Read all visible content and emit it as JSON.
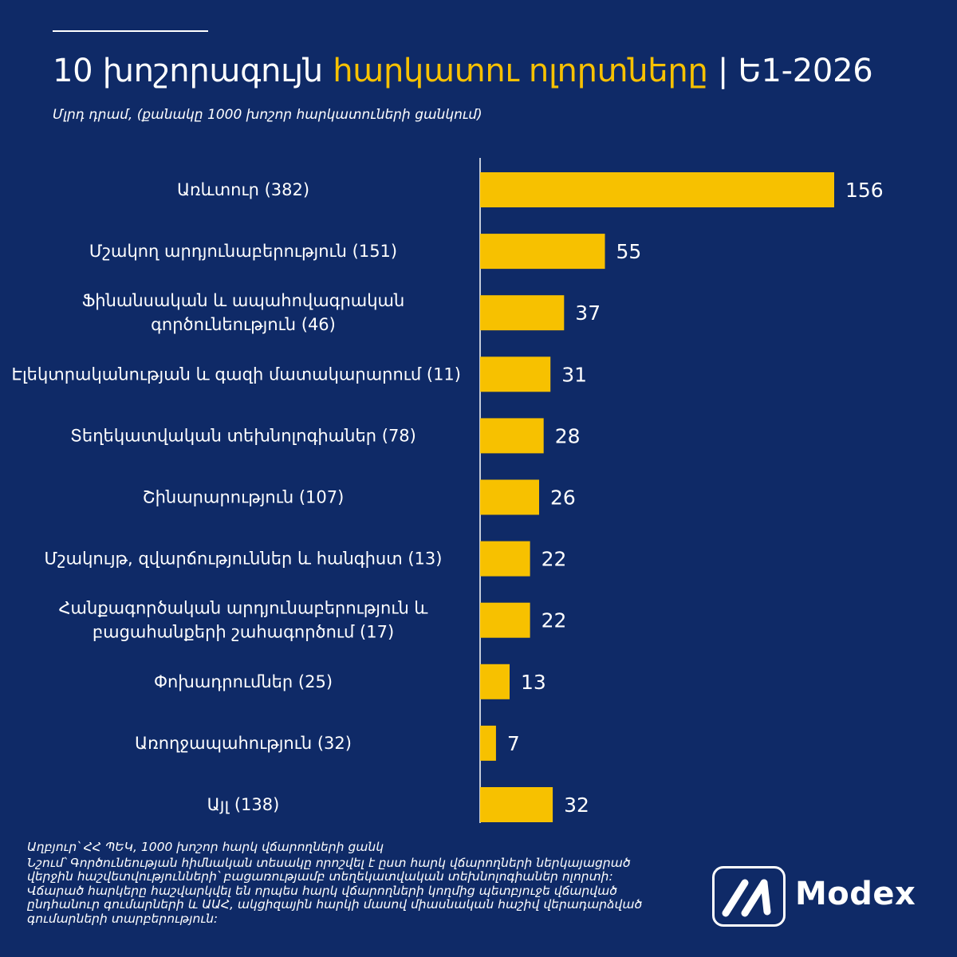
{
  "header": {
    "title_part1": "10 խոշորագույն ",
    "title_accent": "հարկատու ոլորտները",
    "title_part2": " | Ե1-2026",
    "subtitle": "Մլրդ դրամ, (քանակը 1000 խոշոր հարկատուների ցանկում)"
  },
  "colors": {
    "background": "#0f2a67",
    "bar": "#f7c100",
    "accent": "#f7c100",
    "text": "#ffffff"
  },
  "chart_data": {
    "type": "bar",
    "orientation": "horizontal",
    "title": "10 խոշորագույն հարկատու ոլորտները | Ե1-2026",
    "subtitle": "Մլրդ դրամ, (քանակը 1000 խոշոր հարկատուների ցանկում)",
    "categories": [
      [
        "Առևտուր (382)"
      ],
      [
        "Մշակող արդյունաբերություն (151)"
      ],
      [
        "Ֆինանսական և ապահովագրական",
        "գործունեություն (46)"
      ],
      [
        "Էլեկտրականության և գազի մատակարարում (11)"
      ],
      [
        "Տեղեկատվական տեխնոլոգիաներ (78)"
      ],
      [
        "Շինարարություն (107)"
      ],
      [
        "Մշակույթ, զվարճություններ և հանգիստ (13)"
      ],
      [
        "Հանքագործական արդյունաբերություն և",
        "բացահանքերի շահագործում (17)"
      ],
      [
        "Փոխադրումներ (25)"
      ],
      [
        "Առողջապահություն (32)"
      ],
      [
        "Այլ (138)"
      ]
    ],
    "values": [
      156,
      55,
      37,
      31,
      28,
      26,
      22,
      22,
      13,
      7,
      32
    ],
    "xlim": [
      0,
      156
    ],
    "xlabel": "",
    "ylabel": "",
    "grid": false,
    "legend": "none"
  },
  "footer": {
    "source": "Աղբյուր՝ ՀՀ ՊԵԿ, 1000 խոշոր հարկ վճարողների ցանկ",
    "note": [
      "Նշում՝ Գործունեության հիմնական տեսակը որոշվել է ըստ հարկ վճարողների ներկայացրած",
      "վերջին հաշվետվությունների՝ բացառությամբ տեղեկատվական տեխնոլոգիաներ ոլորտի:",
      "Վճարած հարկերը հաշվարկվել են որպես հարկ վճարողների կողմից պետբյուջե վճարված",
      "ընդհանուր գումարների և ԱԱՀ, ակցիզային հարկի մասով միասնական հաշիվ վերադարձված",
      "գումարների տարբերություն:"
    ]
  },
  "logo": {
    "text": "Modex",
    "icon": "modex-logo-icon"
  }
}
